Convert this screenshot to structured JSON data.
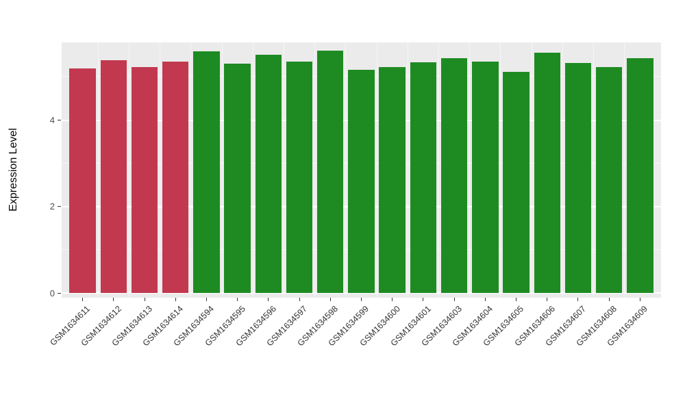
{
  "figure": {
    "background": "#FFFFFF"
  },
  "chart_data": {
    "type": "bar",
    "title": "",
    "xlabel": "",
    "ylabel": "Expression Level",
    "ylim": [
      0,
      5.8
    ],
    "yticks": [
      0,
      2,
      4
    ],
    "yticks_minor": [
      1,
      3,
      5
    ],
    "grid": "on",
    "legend": "none",
    "plot_background": "#EBEBEB",
    "grid_color": "#FFFFFF",
    "axis_text_color": "#4D4D4D",
    "categories": [
      "GSM1634611",
      "GSM1634612",
      "GSM1634613",
      "GSM1634614",
      "GSM1634594",
      "GSM1634595",
      "GSM1634596",
      "GSM1634597",
      "GSM1634598",
      "GSM1634599",
      "GSM1634600",
      "GSM1634601",
      "GSM1634603",
      "GSM1634604",
      "GSM1634605",
      "GSM1634606",
      "GSM1634607",
      "GSM1634608",
      "GSM1634609"
    ],
    "values": [
      5.2,
      5.39,
      5.23,
      5.36,
      5.6,
      5.31,
      5.52,
      5.36,
      5.61,
      5.17,
      5.23,
      5.34,
      5.44,
      5.36,
      5.12,
      5.57,
      5.33,
      5.23,
      5.44
    ],
    "bar_groups": [
      "red",
      "red",
      "red",
      "red",
      "green",
      "green",
      "green",
      "green",
      "green",
      "green",
      "green",
      "green",
      "green",
      "green",
      "green",
      "green",
      "green",
      "green",
      "green"
    ],
    "group_colors": {
      "red": "#C2394F",
      "green": "#1E8B22"
    }
  }
}
